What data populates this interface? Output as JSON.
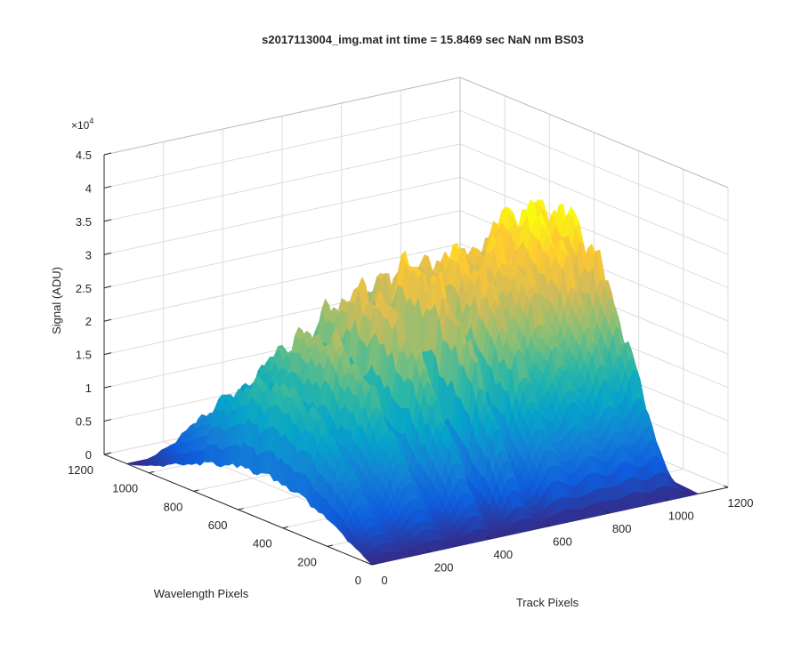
{
  "chart_data": {
    "type": "surface",
    "title": "s2017113004_img.mat int time = 15.8469 sec  NaN nm BS03",
    "xlabel": "Track Pixels",
    "ylabel": "Wavelength Pixels",
    "zlabel": "Signal (ADU)",
    "z_exponent_base": "×10",
    "z_exponent_power": "4",
    "xlim": [
      0,
      1200
    ],
    "ylim": [
      0,
      1200
    ],
    "zlim": [
      0,
      45000
    ],
    "x_ticks": [
      0,
      200,
      400,
      600,
      800,
      1000,
      1200
    ],
    "y_ticks": [
      0,
      200,
      400,
      600,
      800,
      1000,
      1200
    ],
    "z_ticks": [
      0,
      5000,
      10000,
      15000,
      20000,
      25000,
      30000,
      35000,
      40000,
      45000
    ],
    "x_tick_labels": [
      "0",
      "200",
      "400",
      "600",
      "800",
      "1000",
      "1200"
    ],
    "y_tick_labels": [
      "0",
      "200",
      "400",
      "600",
      "800",
      "1000",
      "1200"
    ],
    "z_tick_labels": [
      "0",
      "0.5",
      "1",
      "1.5",
      "2",
      "2.5",
      "3",
      "3.5",
      "4",
      "4.5"
    ],
    "grid": true,
    "colormap": "parula",
    "colormap_stops": [
      "#352a87",
      "#0f5cdd",
      "#1481d6",
      "#06a4ca",
      "#2eb7a4",
      "#87bf77",
      "#d1bb59",
      "#fec832",
      "#f9fb0e"
    ],
    "surface_extent": {
      "x": [
        0,
        1100
      ],
      "y": [
        0,
        1100
      ]
    },
    "ridges": [
      {
        "center_x": 60,
        "peak": 19000
      },
      {
        "center_x": 210,
        "peak": 25000
      },
      {
        "center_x": 370,
        "peak": 30000
      },
      {
        "center_x": 520,
        "peak": 32500
      },
      {
        "center_x": 660,
        "peak": 32000
      },
      {
        "center_x": 790,
        "peak": 32000
      },
      {
        "center_x": 900,
        "peak": 34000
      },
      {
        "center_x": 1000,
        "peak": 36000
      }
    ]
  }
}
